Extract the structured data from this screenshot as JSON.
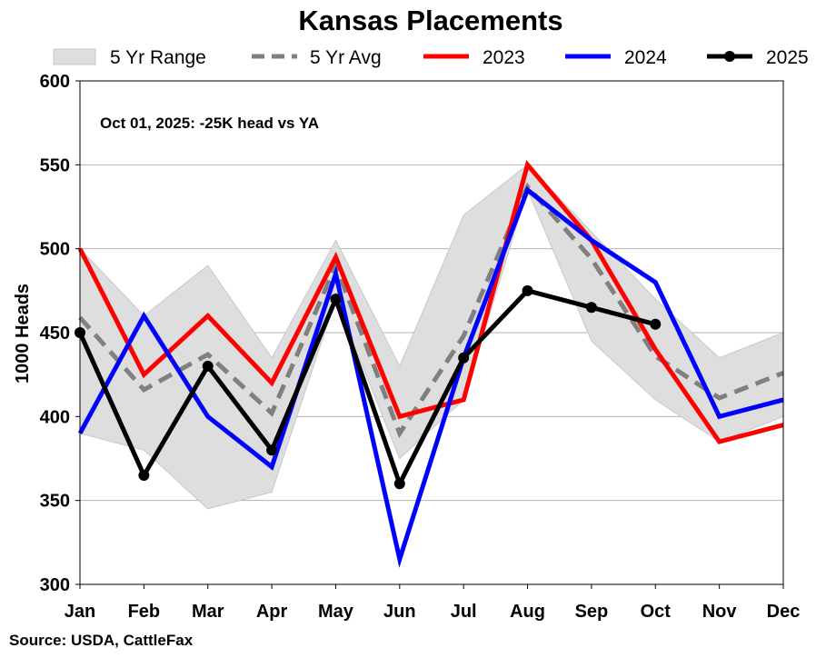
{
  "chart_data": {
    "type": "line",
    "title": "Kansas Placements",
    "ylabel": "1000 Heads",
    "xlabel": "",
    "ylim": [
      300,
      600
    ],
    "yticks": [
      300,
      350,
      400,
      450,
      500,
      550,
      600
    ],
    "categories": [
      "Jan",
      "Feb",
      "Mar",
      "Apr",
      "May",
      "Jun",
      "Jul",
      "Aug",
      "Sep",
      "Oct",
      "Nov",
      "Dec"
    ],
    "grid": "horizontal",
    "legend_position": "top",
    "annotation": "Oct 01, 2025: -25K head vs YA",
    "source": "Source: USDA, CattleFax",
    "range": {
      "name": "5 Yr Range",
      "color": "#dedede",
      "low": [
        390,
        380,
        345,
        355,
        470,
        375,
        410,
        535,
        445,
        410,
        385,
        400
      ],
      "high": [
        500,
        460,
        490,
        435,
        505,
        430,
        520,
        550,
        510,
        470,
        435,
        450
      ]
    },
    "series": [
      {
        "name": "5 Yr Avg",
        "color": "#808080",
        "style": "dashed",
        "markers": false,
        "values": [
          459,
          416,
          437,
          402,
          490,
          390,
          448,
          537,
          494,
          436,
          411,
          426
        ]
      },
      {
        "name": "2023",
        "color": "#ff0000",
        "style": "solid",
        "markers": false,
        "values": [
          500,
          425,
          460,
          420,
          495,
          400,
          410,
          550,
          505,
          440,
          385,
          395
        ]
      },
      {
        "name": "2024",
        "color": "#0000ff",
        "style": "solid",
        "markers": false,
        "values": [
          390,
          460,
          400,
          370,
          485,
          315,
          435,
          535,
          505,
          480,
          400,
          410
        ]
      },
      {
        "name": "2025",
        "color": "#000000",
        "style": "solid",
        "markers": true,
        "values": [
          450,
          365,
          430,
          380,
          470,
          360,
          435,
          475,
          465,
          455,
          null,
          null
        ]
      }
    ]
  }
}
